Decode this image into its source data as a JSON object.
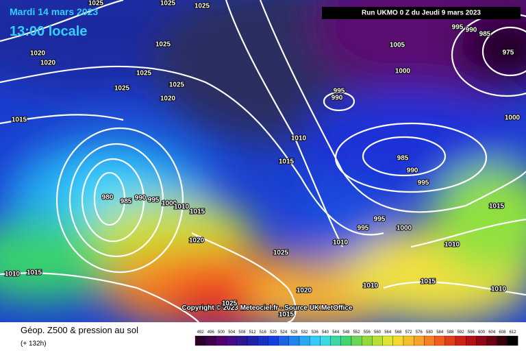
{
  "header": {
    "date": "Mardi 14 mars 2023",
    "time": "13:00 locale",
    "run": "Run UKMO 0 Z du Jeudi 9 mars 2023",
    "copyright": "Copyright © 2023 Meteociel.fr - Source UK MetOffice"
  },
  "isobar_labels": [
    "1025",
    "1025",
    "1025",
    "1020",
    "1020",
    "1025",
    "1025",
    "1025",
    "1025",
    "1020",
    "1015",
    "1005",
    "995",
    "990",
    "985",
    "975",
    "1000",
    "995",
    "990",
    "1000",
    "1010",
    "1015",
    "985",
    "990",
    "995",
    "980",
    "985",
    "990",
    "995",
    "1000",
    "1010",
    "1015",
    "1015",
    "995",
    "995",
    "1000",
    "1020",
    "1010",
    "1010",
    "1025",
    "1010",
    "1015",
    "1020",
    "1010",
    "1015",
    "1010",
    "1025",
    "1015"
  ],
  "footer": {
    "title": "Géop. Z500 & pression au sol",
    "lead": "(+ 132h)",
    "scale": [
      "492",
      "496",
      "500",
      "504",
      "508",
      "512",
      "516",
      "520",
      "524",
      "528",
      "532",
      "536",
      "540",
      "544",
      "548",
      "552",
      "556",
      "560",
      "564",
      "568",
      "572",
      "576",
      "580",
      "584",
      "588",
      "592",
      "596",
      "600",
      "604",
      "608",
      "612"
    ]
  }
}
